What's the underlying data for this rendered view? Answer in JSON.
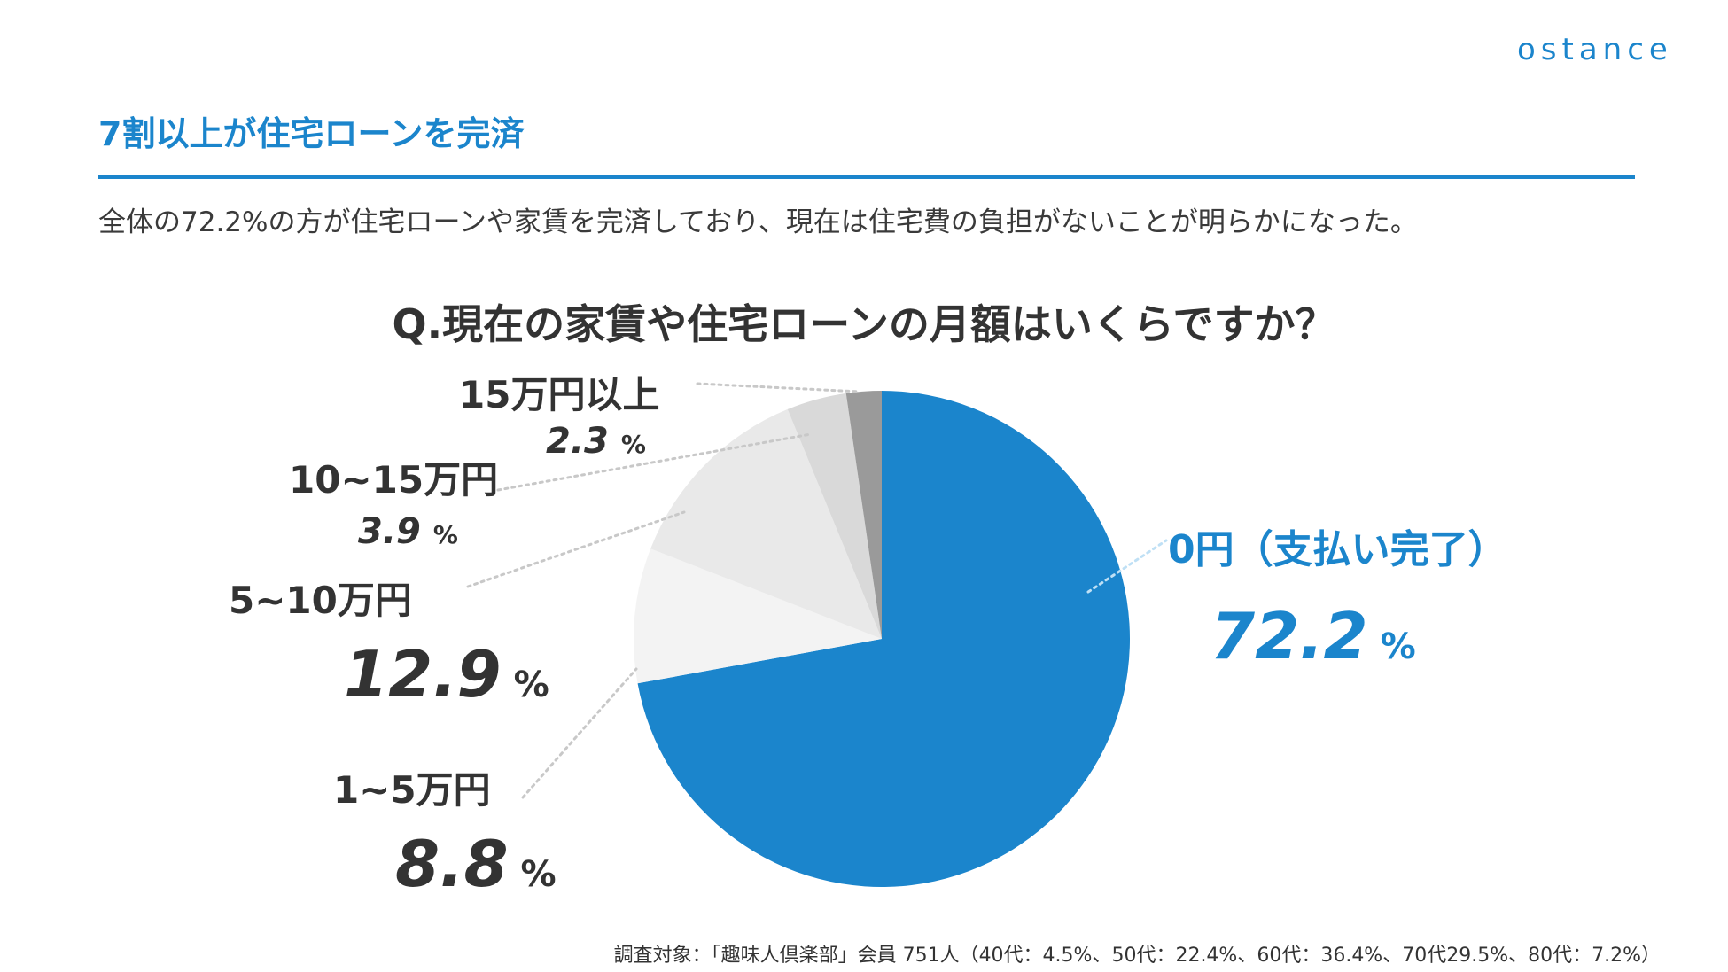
{
  "logo": "ostance",
  "heading": "7割以上が住宅ローンを完済",
  "lead": "全体の72.2%の方が住宅ローンや家賃を完済しており、現在は住宅費の負担がないことが明らかになった。",
  "colors": {
    "accent": "#1b85cc",
    "text": "#333333"
  },
  "chart_data": {
    "type": "pie",
    "title": "Q.現在の家賃や住宅ローンの月額はいくらですか？",
    "unit": "%",
    "slices": [
      {
        "label": "0円（支払い完了）",
        "value": 72.2,
        "value_text": "72.2",
        "color": "#1b85cc"
      },
      {
        "label": "1~5万円",
        "value": 8.8,
        "value_text": "8.8",
        "color": "#f3f3f3"
      },
      {
        "label": "5~10万円",
        "value": 12.9,
        "value_text": "12.9",
        "color": "#e9e9e9"
      },
      {
        "label": "10~15万円",
        "value": 3.9,
        "value_text": "3.9",
        "color": "#d9d9d9"
      },
      {
        "label": "15万円以上",
        "value": 2.3,
        "value_text": "2.3",
        "color": "#9a9a9a"
      }
    ]
  },
  "footnote": "調査対象：「趣味人倶楽部」会員 751人（40代：4.5%、50代：22.4%、60代：36.4%、70代29.5%、80代：7.2%）"
}
